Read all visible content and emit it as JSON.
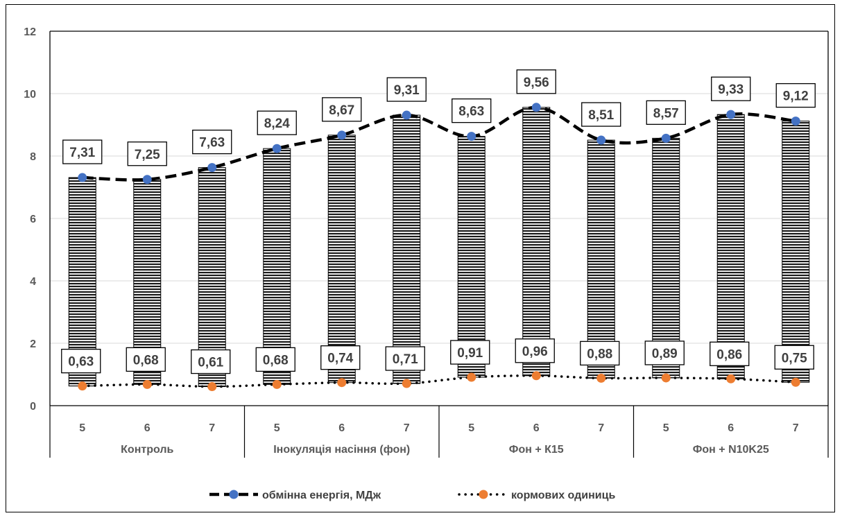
{
  "chart_data": {
    "type": "bar",
    "groups": [
      {
        "label": "Контроль",
        "categories": [
          "5",
          "6",
          "7"
        ]
      },
      {
        "label": "Інокуляція насіння (фон)",
        "categories": [
          "5",
          "6",
          "7"
        ]
      },
      {
        "label": "Фон + К15",
        "categories": [
          "5",
          "6",
          "7"
        ]
      },
      {
        "label": "Фон + N10K25",
        "categories": [
          "5",
          "6",
          "7"
        ]
      }
    ],
    "categories": [
      "5",
      "6",
      "7",
      "5",
      "6",
      "7",
      "5",
      "6",
      "7",
      "5",
      "6",
      "7"
    ],
    "ylim": [
      0,
      12
    ],
    "yticks": [
      0,
      2,
      4,
      6,
      8,
      10,
      12
    ],
    "grid": true,
    "legend_position": "bottom",
    "series": [
      {
        "name": "обмінна енергія, МДж",
        "marker_color": "#4472C4",
        "line_style": "dashed",
        "values": [
          7.31,
          7.25,
          7.63,
          8.24,
          8.67,
          9.31,
          8.63,
          9.56,
          8.51,
          8.57,
          9.33,
          9.12
        ],
        "labels": [
          "7,31",
          "7,25",
          "7,63",
          "8,24",
          "8,67",
          "9,31",
          "8,63",
          "9,56",
          "8,51",
          "8,57",
          "9,33",
          "9,12"
        ]
      },
      {
        "name": "кормових одиниць",
        "marker_color": "#ED7D31",
        "line_style": "dotted",
        "values": [
          0.63,
          0.68,
          0.61,
          0.68,
          0.74,
          0.71,
          0.91,
          0.96,
          0.88,
          0.89,
          0.86,
          0.75
        ],
        "labels": [
          "0,63",
          "0,68",
          "0,61",
          "0,68",
          "0,74",
          "0,71",
          "0,91",
          "0,96",
          "0,88",
          "0,89",
          "0,86",
          "0,75"
        ]
      }
    ]
  }
}
